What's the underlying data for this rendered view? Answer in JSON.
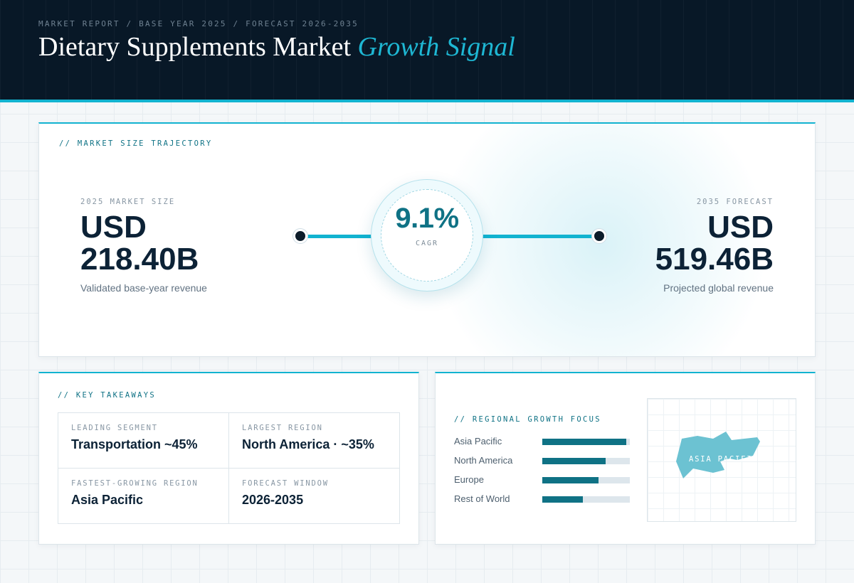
{
  "header": {
    "breadcrumb": "MARKET REPORT / BASE YEAR 2025 / FORECAST 2026-2035",
    "title_main": "Dietary Supplements Market",
    "title_accent": "Growth Signal"
  },
  "trajectory": {
    "label": "// MARKET SIZE TRAJECTORY",
    "start": {
      "label": "2025 MARKET SIZE",
      "currency": "USD",
      "amount": "218.40B",
      "caption": "Validated base-year revenue"
    },
    "cagr": {
      "value": "9.1%",
      "label": "CAGR"
    },
    "end": {
      "label": "2035 FORECAST",
      "currency": "USD",
      "amount": "519.46B",
      "caption": "Projected global revenue"
    }
  },
  "takeaways": {
    "label": "// KEY TAKEAWAYS",
    "items": [
      {
        "label": "LEADING SEGMENT",
        "value": "Transportation ~45%"
      },
      {
        "label": "LARGEST REGION",
        "value": "North America · ~35%"
      },
      {
        "label": "FASTEST-GROWING REGION",
        "value": "Asia Pacific"
      },
      {
        "label": "FORECAST WINDOW",
        "value": "2026-2035"
      }
    ]
  },
  "regional": {
    "label": "// REGIONAL GROWTH FOCUS",
    "regions": [
      {
        "name": "Asia Pacific",
        "level": 0.96
      },
      {
        "name": "North America",
        "level": 0.72
      },
      {
        "name": "Europe",
        "level": 0.64
      },
      {
        "name": "Rest of World",
        "level": 0.46
      }
    ],
    "map_label": "ASIA PACIFIC"
  },
  "colors": {
    "accent": "#12b3d0",
    "primary": "#0f7285",
    "header_bg": "#081827",
    "map_fill": "#6cc2d2"
  }
}
